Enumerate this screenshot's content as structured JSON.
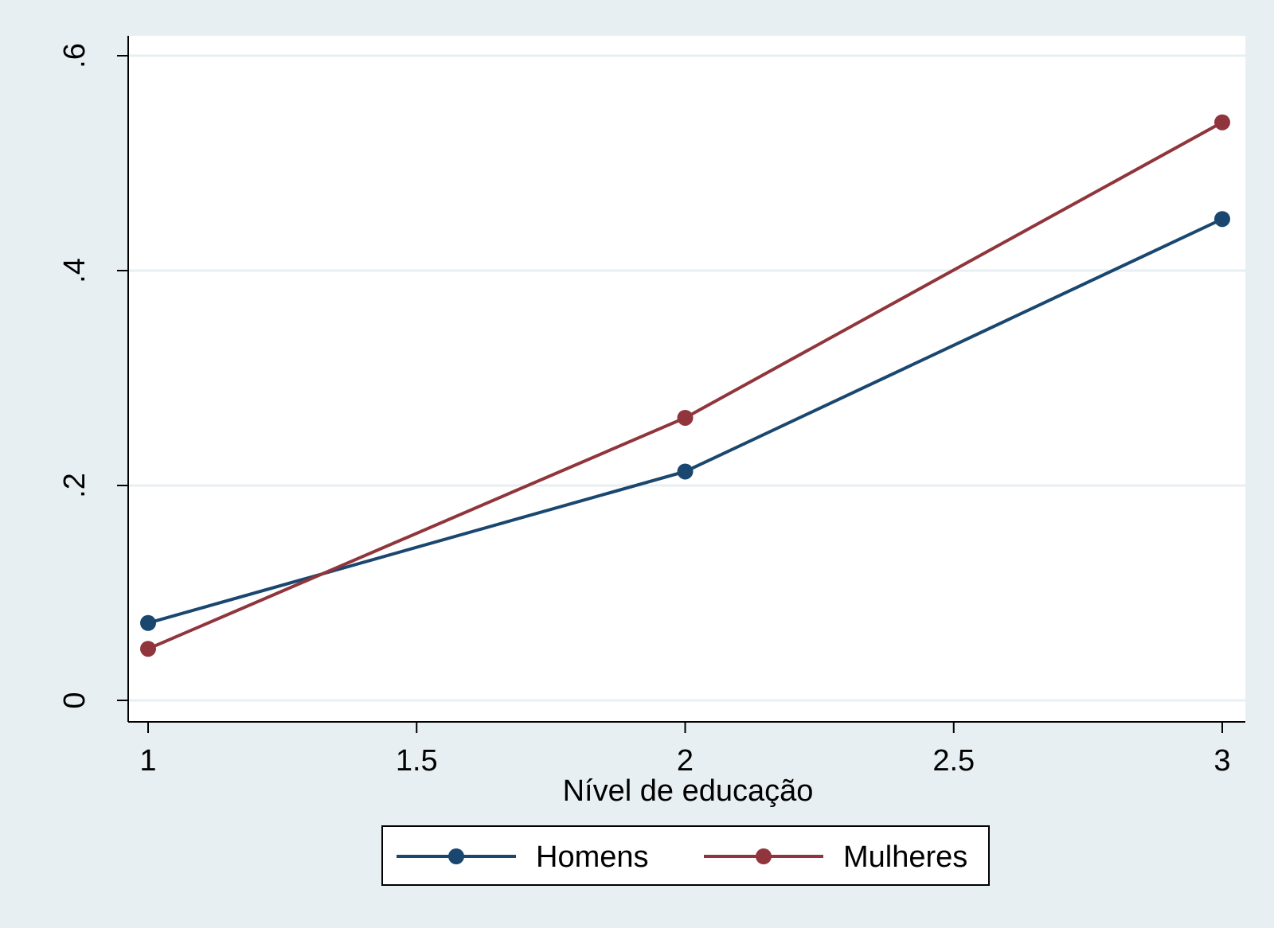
{
  "chart_data": {
    "type": "line",
    "xlabel": "Nível de educação",
    "ylabel": "",
    "xlim": [
      1,
      3
    ],
    "ylim": [
      0,
      0.6
    ],
    "x_ticks": [
      1,
      1.5,
      2,
      2.5,
      3
    ],
    "x_tick_labels": [
      "1",
      "1.5",
      "2",
      "2.5",
      "3"
    ],
    "y_ticks": [
      0,
      0.2,
      0.4,
      0.6
    ],
    "y_tick_labels": [
      "0",
      ".2",
      ".4",
      ".6"
    ],
    "grid": true,
    "legend_position": "bottom",
    "x": [
      1,
      2,
      3
    ],
    "series": [
      {
        "name": "Homens",
        "color": "#1a476f",
        "values": [
          0.072,
          0.213,
          0.448
        ]
      },
      {
        "name": "Mulheres",
        "color": "#90353b",
        "values": [
          0.048,
          0.263,
          0.538
        ]
      }
    ],
    "colors": {
      "background": "#e8eff2",
      "plot_area": "#ffffff",
      "grid": "#e8eff2"
    }
  }
}
